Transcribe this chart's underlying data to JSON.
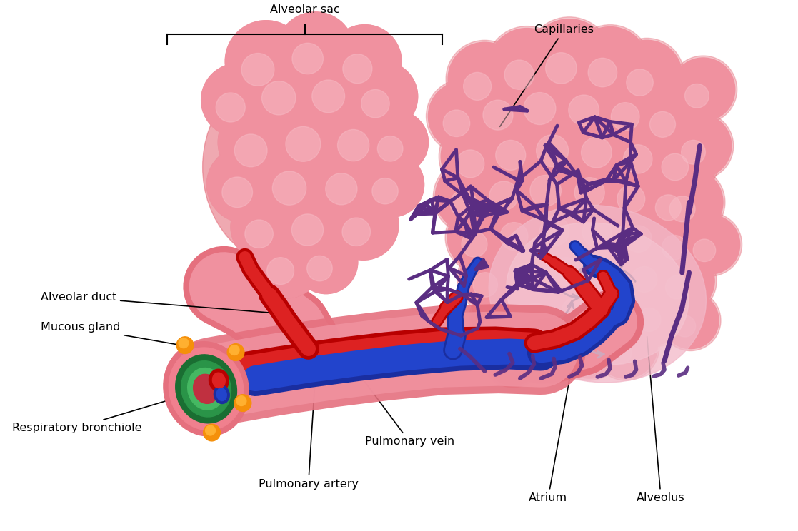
{
  "bg_color": "#ffffff",
  "pink_mid": "#f0919f",
  "pink_light": "#f7bcc6",
  "pink_dark": "#e5707e",
  "pink_base": "#f4a3b0",
  "cap_purple": "#5a2d82",
  "cap_purple_fill": "#8b5cb5",
  "artery_dark": "#b80000",
  "artery_light": "#dd2222",
  "vein_dark": "#1a2ea0",
  "vein_light": "#2244cc",
  "green_dark": "#1a6e32",
  "green_mid": "#2a9448",
  "green_light": "#45b862",
  "orange": "#f5900a",
  "atrium_color": "#e8a8bc",
  "arrow_color": "#d8b0c0",
  "labels": {
    "alveolar_sac": "Alveolar sac",
    "capillaries": "Capillaries",
    "alveolar_duct": "Alveolar duct",
    "mucous_gland": "Mucous gland",
    "respiratory_bronchiole": "Respiratory bronchiole",
    "pulmonary_vein": "Pulmonary vein",
    "pulmonary_artery": "Pulmonary artery",
    "atrium": "Atrium",
    "alveolus": "Alveolus"
  },
  "figsize": [
    11.17,
    7.44
  ],
  "dpi": 100
}
